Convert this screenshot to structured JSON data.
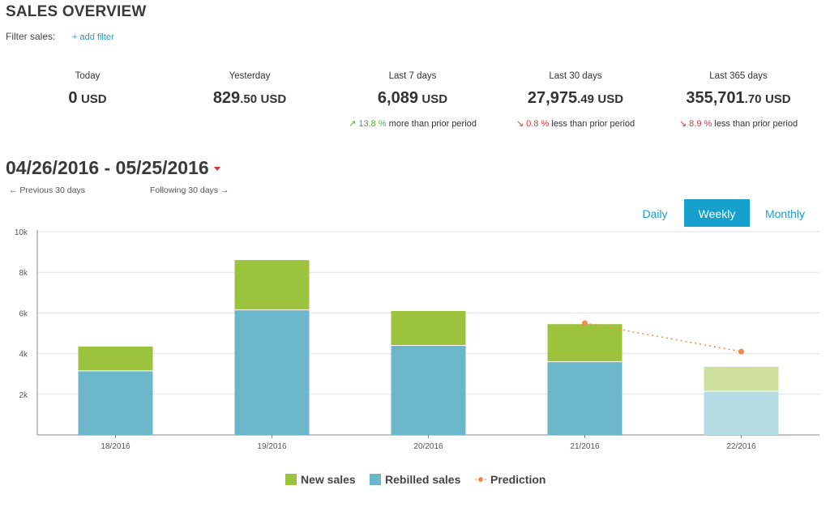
{
  "header": {
    "title": "SALES OVERVIEW",
    "filter_label": "Filter sales:",
    "add_filter": "+ add filter"
  },
  "stats": [
    {
      "label": "Today",
      "int": "0",
      "dec": "",
      "currency": "USD",
      "change_pct": "",
      "change_text": "",
      "direction": ""
    },
    {
      "label": "Yesterday",
      "int": "829",
      "dec": ".50",
      "currency": "USD",
      "change_pct": "",
      "change_text": "",
      "direction": ""
    },
    {
      "label": "Last 7 days",
      "int": "6,089",
      "dec": "",
      "currency": "USD",
      "change_pct": "13.8 %",
      "change_text": "more than prior period",
      "direction": "up"
    },
    {
      "label": "Last 30 days",
      "int": "27,975",
      "dec": ".49",
      "currency": "USD",
      "change_pct": "0.8 %",
      "change_text": "less than prior period",
      "direction": "down"
    },
    {
      "label": "Last 365 days",
      "int": "355,701",
      "dec": ".70",
      "currency": "USD",
      "change_pct": "8.9 %",
      "change_text": "less than prior period",
      "direction": "down"
    }
  ],
  "date_range": {
    "label": "04/26/2016 - 05/25/2016",
    "prev": "← Previous 30 days",
    "next": "Following 30 days →"
  },
  "tabs": [
    {
      "label": "Daily",
      "active": false
    },
    {
      "label": "Weekly",
      "active": true
    },
    {
      "label": "Monthly",
      "active": false
    }
  ],
  "legend": {
    "new_sales": "New sales",
    "rebilled_sales": "Rebilled sales",
    "prediction": "Prediction"
  },
  "colors": {
    "new_sales": "#9bc33d",
    "rebilled_sales": "#6bb6c9",
    "new_sales_pred": "#cde09b",
    "rebilled_sales_pred": "#b5dbe5",
    "prediction": "#ee8c53",
    "accent": "#17a0cd"
  },
  "chart_data": {
    "type": "bar",
    "stacked": true,
    "categories": [
      "18/2016",
      "19/2016",
      "20/2016",
      "21/2016",
      "22/2016"
    ],
    "series": [
      {
        "name": "Rebilled sales",
        "values": [
          3150,
          6150,
          4400,
          3600,
          2150
        ]
      },
      {
        "name": "New sales",
        "values": [
          1200,
          2450,
          1700,
          1850,
          1200
        ]
      }
    ],
    "projected_categories": [
      "22/2016"
    ],
    "prediction": {
      "name": "Prediction",
      "points": [
        {
          "x": "21/2016",
          "y": 5500
        },
        {
          "x": "22/2016",
          "y": 4100
        }
      ]
    },
    "ylim": [
      0,
      10000
    ],
    "yticks": [
      {
        "value": 2000,
        "label": "2k"
      },
      {
        "value": 4000,
        "label": "4k"
      },
      {
        "value": 6000,
        "label": "6k"
      },
      {
        "value": 8000,
        "label": "8k"
      },
      {
        "value": 10000,
        "label": "10k"
      }
    ],
    "grid": true,
    "legend_position": "bottom-center"
  }
}
